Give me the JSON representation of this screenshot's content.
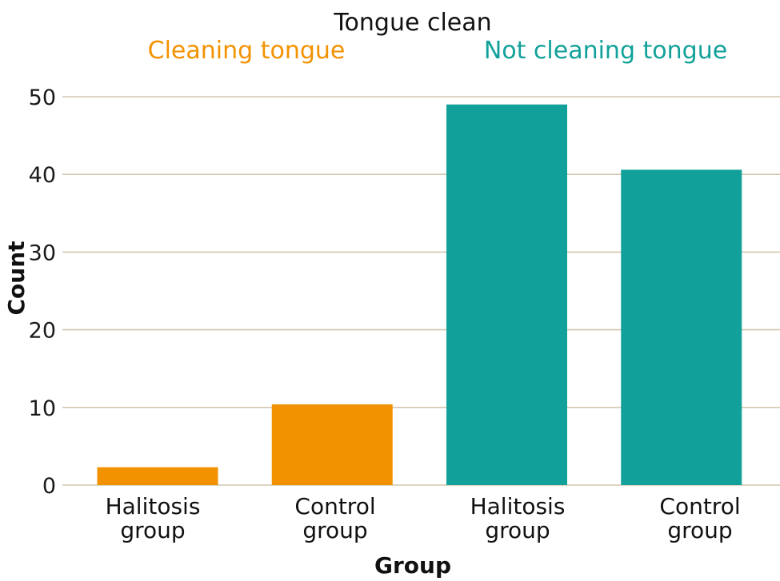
{
  "chart_data": {
    "type": "bar",
    "title": "",
    "legend": {
      "title": "Tongue clean",
      "placement": "top",
      "entries": [
        {
          "label": "Cleaning tongue",
          "color": "#f39200"
        },
        {
          "label": "Not cleaning tongue",
          "color": "#12a19a"
        }
      ]
    },
    "xlabel": "Group",
    "ylabel": "Count",
    "ylim": [
      0,
      52
    ],
    "yticks": [
      0,
      10,
      20,
      30,
      40,
      50
    ],
    "grid": "horizontal",
    "categories": [
      {
        "line1": "Halitosis",
        "line2": "group"
      },
      {
        "line1": "Control",
        "line2": "group"
      },
      {
        "line1": "Halitosis",
        "line2": "group"
      },
      {
        "line1": "Control",
        "line2": "group"
      }
    ],
    "bars": [
      {
        "series": "Cleaning tongue",
        "value": 2.3,
        "color": "#f39200"
      },
      {
        "series": "Cleaning tongue",
        "value": 10.4,
        "color": "#f39200"
      },
      {
        "series": "Not cleaning tongue",
        "value": 49,
        "color": "#12a19a"
      },
      {
        "series": "Not cleaning tongue",
        "value": 40.6,
        "color": "#12a19a"
      }
    ]
  }
}
